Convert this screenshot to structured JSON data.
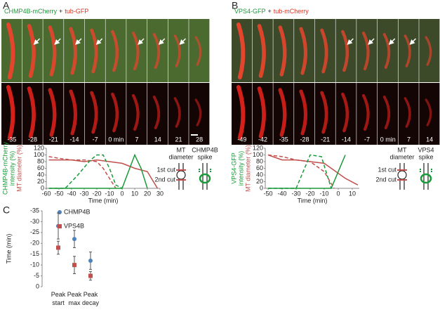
{
  "panel_labels": [
    "A",
    "B",
    "C"
  ],
  "micrographs": [
    {
      "title": [
        {
          "text": "CHMP4B-mCherry",
          "color": "#1a9a3a"
        },
        {
          "text": "+",
          "color": "#222222"
        },
        {
          "text": "tub-GFP",
          "color": "#e03020"
        }
      ],
      "times": [
        "-35",
        "-28",
        "-21",
        "-14",
        "-7",
        "0 min",
        "7",
        "14",
        "21",
        "28"
      ]
    },
    {
      "title": [
        {
          "text": "VPS4-GFP",
          "color": "#1a9a3a"
        },
        {
          "text": "+",
          "color": "#222222"
        },
        {
          "text": "tub-mCherry",
          "color": "#e03020"
        }
      ],
      "times": [
        "-49",
        "-42",
        "-35",
        "-28",
        "-21",
        "-14",
        "-7",
        "0 min",
        "7",
        "14"
      ]
    }
  ],
  "schematics": [
    {
      "left": [
        "MT",
        "diameter"
      ],
      "right": [
        "CHMP4B",
        "spike"
      ],
      "cuts": [
        "1st cut",
        "2nd cut"
      ]
    },
    {
      "left": [
        "MT",
        "diameter"
      ],
      "right": [
        "VPS4",
        "spike"
      ],
      "cuts": [
        "1st cut",
        "2nd cut"
      ]
    }
  ],
  "chart_data": [
    {
      "type": "line",
      "ylabel_lines": [
        {
          "text": "CHMP4B-mCherry",
          "color": "#1a9a3a"
        },
        {
          "text": "intensity (%)",
          "color": "#1a9a3a"
        },
        {
          "text": "MT diameter (%)",
          "color": "#c0504d"
        }
      ],
      "xlabel": "Time (min)",
      "xlim": [
        -60,
        30
      ],
      "xticks": [
        -60,
        -50,
        -40,
        -30,
        -20,
        -10,
        0,
        10,
        20,
        30
      ],
      "ylim": [
        0,
        120
      ],
      "yticks": [
        0,
        20,
        40,
        60,
        80,
        100,
        120
      ],
      "series": [
        {
          "color": "#c0504d",
          "dashed": true,
          "x": [
            -58,
            -50,
            -40,
            -30,
            -20,
            -15,
            -10,
            -5
          ],
          "values": [
            95,
            90,
            85,
            85,
            80,
            60,
            30,
            0
          ]
        },
        {
          "color": "#c0504d",
          "dashed": false,
          "x": [
            -58,
            -40,
            -30,
            -20,
            -10,
            0,
            10,
            20,
            28
          ],
          "values": [
            85,
            85,
            80,
            85,
            80,
            75,
            60,
            50,
            0
          ]
        },
        {
          "color": "#1a9a3a",
          "dashed": true,
          "x": [
            -58,
            -45,
            -35,
            -25,
            -20,
            -15,
            -10,
            -5,
            0
          ],
          "values": [
            0,
            0,
            40,
            85,
            100,
            100,
            60,
            10,
            0
          ]
        },
        {
          "color": "#1a9a3a",
          "dashed": false,
          "x": [
            -58,
            0,
            10,
            15,
            20
          ],
          "values": [
            0,
            0,
            100,
            60,
            0
          ]
        }
      ]
    },
    {
      "type": "line",
      "ylabel_lines": [
        {
          "text": "VPS4-GFP",
          "color": "#1a9a3a"
        },
        {
          "text": "intensity (%)",
          "color": "#1a9a3a"
        },
        {
          "text": "MT diameter (%)",
          "color": "#c0504d"
        }
      ],
      "xlabel": "Time (min)",
      "xlim": [
        -52,
        15
      ],
      "xticks": [
        -50,
        -40,
        -30,
        -20,
        -10,
        0,
        10
      ],
      "ylim": [
        0,
        120
      ],
      "yticks": [
        0,
        20,
        40,
        60,
        80,
        100,
        120
      ],
      "series": [
        {
          "color": "#c0504d",
          "dashed": true,
          "x": [
            -50,
            -40,
            -30,
            -20,
            -10,
            -3
          ],
          "values": [
            100,
            95,
            85,
            80,
            50,
            0
          ]
        },
        {
          "color": "#c0504d",
          "dashed": false,
          "x": [
            -50,
            -40,
            -30,
            -20,
            -10,
            -5,
            5,
            14
          ],
          "values": [
            100,
            85,
            85,
            80,
            75,
            60,
            30,
            10
          ]
        },
        {
          "color": "#1a9a3a",
          "dashed": true,
          "x": [
            -50,
            -30,
            -20,
            -12,
            -5
          ],
          "values": [
            0,
            0,
            100,
            95,
            0
          ]
        },
        {
          "color": "#1a9a3a",
          "dashed": false,
          "x": [
            -50,
            -5,
            5
          ],
          "values": [
            0,
            0,
            100
          ]
        }
      ]
    },
    {
      "type": "errorbar",
      "ylabel": "Time (min)",
      "categories": [
        "Peak start",
        "Peak max",
        "Peak decay"
      ],
      "ylim": [
        0,
        -35
      ],
      "yticks": [
        -35,
        -30,
        -25,
        -20,
        -15,
        -10,
        -5,
        0
      ],
      "series": [
        {
          "name": "CHMP4B",
          "color": "#4f81bd",
          "marker": "circle",
          "values": [
            -28,
            -22,
            -12
          ],
          "errors": [
            6,
            4,
            4
          ]
        },
        {
          "name": "VPS4B",
          "color": "#c0504d",
          "marker": "square",
          "values": [
            -18,
            -10,
            -5
          ],
          "errors": [
            3,
            4,
            2
          ]
        }
      ]
    }
  ]
}
